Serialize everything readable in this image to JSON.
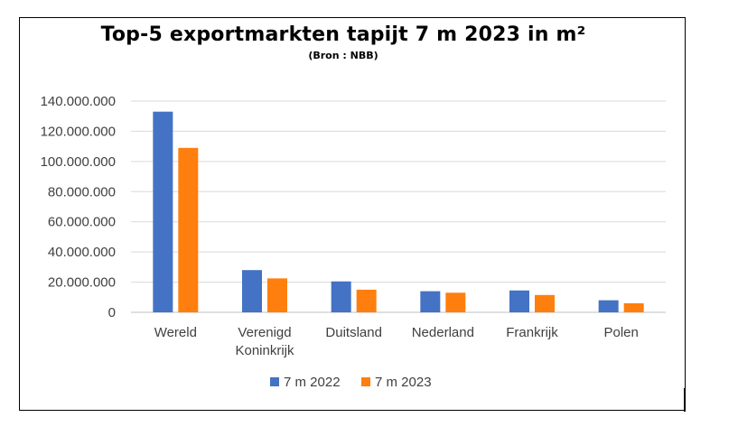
{
  "chart_data": {
    "type": "bar",
    "title": "Top-5 exportmarkten tapijt 7 m 2023 in m²",
    "subtitle": "(Bron : NBB)",
    "categories": [
      "Wereld",
      "Verenigd Koninkrijk",
      "Duitsland",
      "Nederland",
      "Frankrijk",
      "Polen"
    ],
    "category_lines": [
      [
        "Wereld"
      ],
      [
        "Verenigd",
        "Koninkrijk"
      ],
      [
        "Duitsland"
      ],
      [
        "Nederland"
      ],
      [
        "Frankrijk"
      ],
      [
        "Polen"
      ]
    ],
    "series": [
      {
        "name": "7 m 2022",
        "color": "#4472C4",
        "values": [
          133000000,
          28000000,
          20500000,
          14000000,
          14500000,
          8000000
        ]
      },
      {
        "name": "7 m 2023",
        "color": "#FF7F0E",
        "values": [
          109000000,
          22500000,
          15000000,
          13000000,
          11500000,
          6000000
        ]
      }
    ],
    "ylim": [
      0,
      140000000
    ],
    "yticks": [
      0,
      20000000,
      40000000,
      60000000,
      80000000,
      100000000,
      120000000,
      140000000
    ],
    "ytick_labels": [
      "0",
      "20.000.000",
      "40.000.000",
      "60.000.000",
      "80.000.000",
      "100.000.000",
      "120.000.000",
      "140.000.000"
    ],
    "grid": true,
    "legend_position": "bottom",
    "xlabel": "",
    "ylabel": ""
  }
}
